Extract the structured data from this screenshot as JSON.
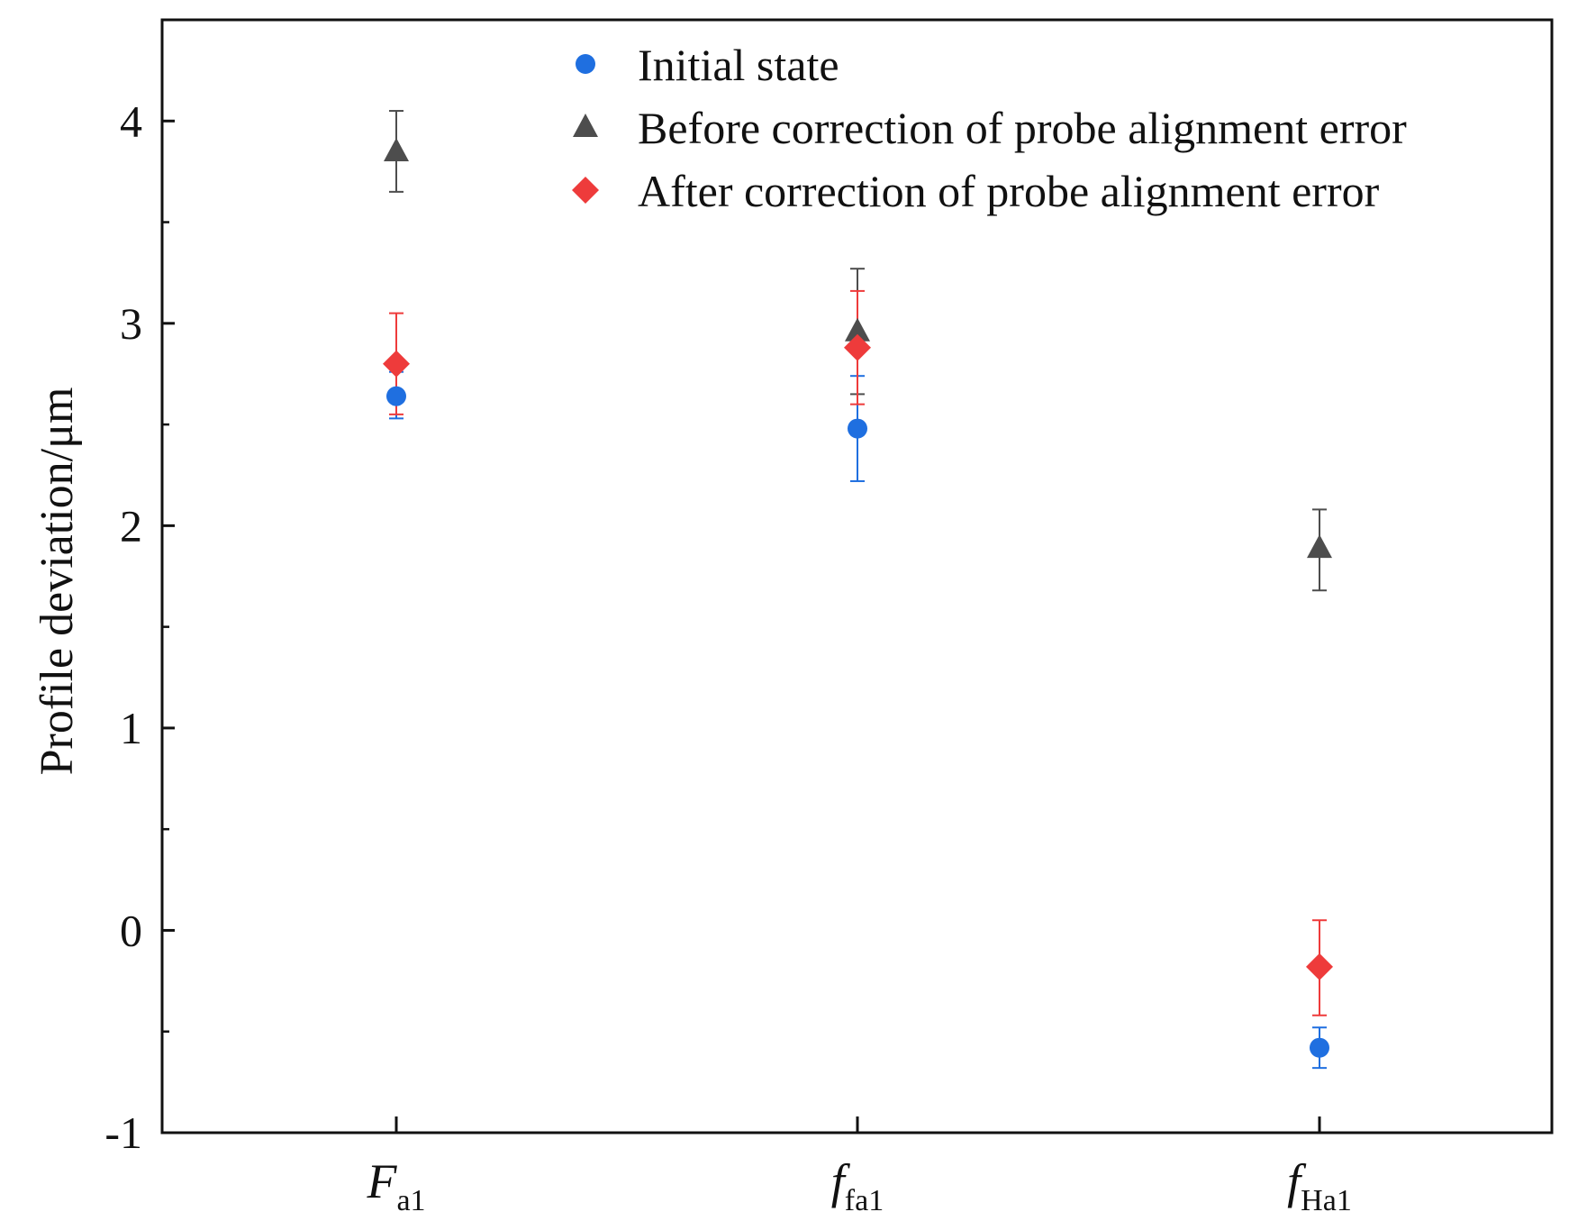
{
  "chart_data": {
    "type": "scatter",
    "title": "",
    "xlabel": "",
    "ylabel": "Profile deviation/μm",
    "ylim": [
      -1,
      4.5
    ],
    "yticks": [
      -1,
      0,
      1,
      2,
      3,
      4
    ],
    "ytick_labels": [
      "-1",
      "0",
      "1",
      "2",
      "3",
      "4"
    ],
    "grid": false,
    "legend_position": "top-center",
    "categories": [
      {
        "main": "F",
        "sub": "a1"
      },
      {
        "main": "f",
        "sub": "fa1"
      },
      {
        "main": "f",
        "sub": "Ha1"
      }
    ],
    "series": [
      {
        "name": "Initial state",
        "marker": "circle",
        "color": "#1f6fe0",
        "values": [
          2.64,
          2.48,
          -0.58
        ],
        "err_low": [
          2.53,
          2.22,
          -0.68
        ],
        "err_high": [
          2.76,
          2.74,
          -0.48
        ]
      },
      {
        "name": "Before correction of probe alignment error",
        "marker": "triangle",
        "color": "#4d4d4d",
        "values": [
          3.85,
          2.96,
          1.89
        ],
        "err_low": [
          3.65,
          2.65,
          1.68
        ],
        "err_high": [
          4.05,
          3.27,
          2.08
        ]
      },
      {
        "name": "After correction of probe alignment error",
        "marker": "diamond",
        "color": "#ee3b3b",
        "values": [
          2.8,
          2.88,
          -0.18
        ],
        "err_low": [
          2.55,
          2.6,
          -0.42
        ],
        "err_high": [
          3.05,
          3.16,
          0.05
        ]
      }
    ]
  }
}
